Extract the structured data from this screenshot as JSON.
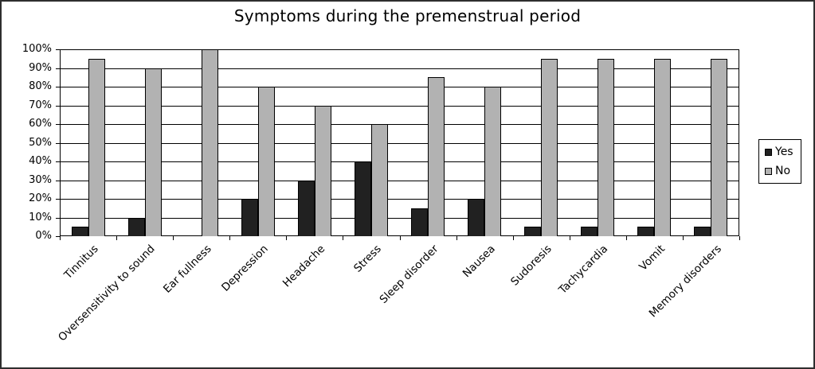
{
  "window": {
    "background": "#ffffff",
    "border_color": "#2e2e2e"
  },
  "chart_data": {
    "type": "bar",
    "title": "Symptoms during the premenstrual period",
    "categories": [
      "Tinnitus",
      "Oversensitivity to sound",
      "Ear fullness",
      "Depression",
      "Headache",
      "Stress",
      "Sleep disorder",
      "Nausea",
      "Sudoresis",
      "Tachycardia",
      "Vomit",
      "Memory disorders"
    ],
    "series": [
      {
        "name": "Yes",
        "color": "#212121",
        "values": [
          5,
          10,
          0,
          20,
          30,
          40,
          15,
          20,
          5,
          5,
          5,
          5
        ]
      },
      {
        "name": "No",
        "color": "#b2b2b2",
        "values": [
          95,
          90,
          100,
          80,
          70,
          60,
          85,
          80,
          95,
          95,
          95,
          95
        ]
      }
    ],
    "xlabel": "",
    "ylabel": "",
    "ylim": [
      0,
      100
    ],
    "ytick_step": 10,
    "ytick_labels": [
      "0%",
      "10%",
      "20%",
      "30%",
      "40%",
      "50%",
      "60%",
      "70%",
      "80%",
      "90%",
      "100%"
    ],
    "grid": true,
    "legend_position": "right",
    "axis_color": "#000000",
    "gridline_color": "#000000",
    "bar_border_color": "#000000"
  }
}
